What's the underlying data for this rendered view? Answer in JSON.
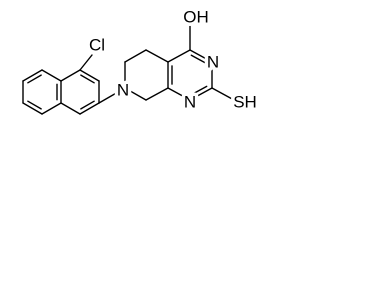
{
  "labels": [
    "Cl",
    "N",
    "OH",
    "N",
    "N",
    "SH"
  ]
}
